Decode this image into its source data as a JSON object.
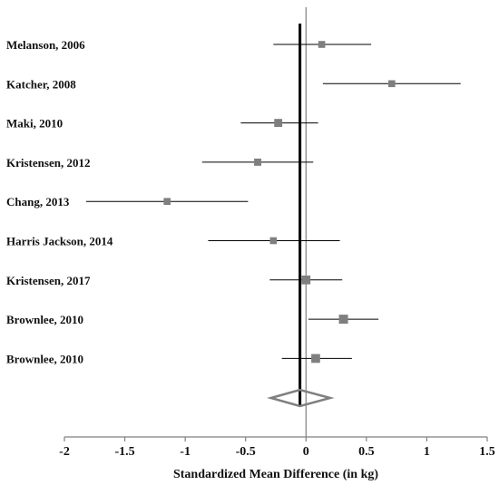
{
  "chart_data": {
    "type": "forest",
    "xlabel": "Standardized Mean Difference (in kg)",
    "xlim": [
      -2,
      1.5
    ],
    "x_ticks": [
      -2,
      -1.5,
      -1,
      -0.5,
      0,
      0.5,
      1,
      1.5
    ],
    "x_tick_labels": [
      "-2",
      "-1.5",
      "-1",
      "-0.5",
      "0",
      "0.5",
      "1",
      "1.5"
    ],
    "null_line": 0,
    "pooled_estimate_line": -0.05,
    "studies": [
      {
        "label": "Melanson, 2006",
        "estimate": 0.13,
        "ci_low": -0.27,
        "ci_high": 0.54,
        "weight": 0.6
      },
      {
        "label": "Katcher, 2008",
        "estimate": 0.71,
        "ci_low": 0.14,
        "ci_high": 1.28,
        "weight": 0.6
      },
      {
        "label": "Maki, 2010",
        "estimate": -0.23,
        "ci_low": -0.54,
        "ci_high": 0.1,
        "weight": 0.8
      },
      {
        "label": "Kristensen, 2012",
        "estimate": -0.4,
        "ci_low": -0.86,
        "ci_high": 0.06,
        "weight": 0.65
      },
      {
        "label": "Chang, 2013",
        "estimate": -1.15,
        "ci_low": -1.82,
        "ci_high": -0.48,
        "weight": 0.6
      },
      {
        "label": "Harris Jackson, 2014",
        "estimate": -0.27,
        "ci_low": -0.81,
        "ci_high": 0.28,
        "weight": 0.6
      },
      {
        "label": "Kristensen, 2017",
        "estimate": 0.0,
        "ci_low": -0.3,
        "ci_high": 0.3,
        "weight": 0.95
      },
      {
        "label": "Brownlee, 2010",
        "estimate": 0.31,
        "ci_low": 0.02,
        "ci_high": 0.6,
        "weight": 1.0
      },
      {
        "label": "Brownlee, 2010",
        "estimate": 0.08,
        "ci_low": -0.2,
        "ci_high": 0.38,
        "weight": 0.95
      }
    ],
    "pooled": {
      "estimate": -0.05,
      "ci_low": -0.29,
      "ci_high": 0.2
    },
    "colors": {
      "marker": "#7f7f7f",
      "ci_line": "#000000",
      "diamond": "#7f7f7f",
      "axis": "#808080",
      "estimate_line": "#000000"
    }
  }
}
